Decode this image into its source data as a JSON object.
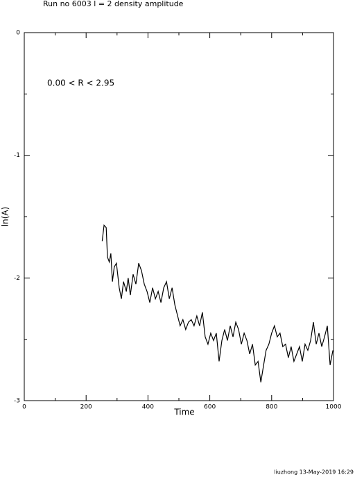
{
  "chart_data": {
    "type": "line",
    "title": "Run no  6003  l =  2  density amplitude",
    "annotation": "0.00 < R <  2.95",
    "xlabel": "Time",
    "ylabel": "ln(A)",
    "footer": "liuzhong 13-May-2019 16:29",
    "xlim": [
      0,
      1000
    ],
    "ylim": [
      -3,
      0
    ],
    "xticks": [
      0,
      200,
      400,
      600,
      800,
      1000
    ],
    "xminor_ticks": [
      100,
      300,
      500,
      700,
      900
    ],
    "yticks": [
      -3,
      -2,
      -1,
      0
    ],
    "yminor_ticks": [
      -2.5,
      -1.5,
      -0.5
    ],
    "x": [
      252,
      258,
      265,
      269,
      275,
      280,
      285,
      291,
      298,
      307,
      314,
      321,
      330,
      336,
      343,
      352,
      361,
      370,
      379,
      388,
      397,
      406,
      415,
      424,
      433,
      442,
      451,
      460,
      469,
      478,
      487,
      496,
      504,
      513,
      522,
      531,
      540,
      549,
      558,
      567,
      576,
      585,
      594,
      603,
      612,
      621,
      630,
      639,
      648,
      657,
      666,
      675,
      684,
      693,
      702,
      711,
      720,
      729,
      738,
      747,
      756,
      765,
      774,
      782,
      791,
      800,
      809,
      818,
      827,
      836,
      845,
      854,
      863,
      872,
      881,
      890,
      899,
      908,
      917,
      926,
      935,
      944,
      953,
      962,
      971,
      980,
      989,
      998
    ],
    "series": [
      {
        "color": "#000000",
        "values": [
          -1.7,
          -1.57,
          -1.59,
          -1.83,
          -1.87,
          -1.8,
          -2.03,
          -1.91,
          -1.88,
          -2.08,
          -2.17,
          -2.03,
          -2.11,
          -2.0,
          -2.14,
          -1.97,
          -2.05,
          -1.88,
          -1.94,
          -2.05,
          -2.11,
          -2.2,
          -2.08,
          -2.17,
          -2.11,
          -2.2,
          -2.08,
          -2.03,
          -2.17,
          -2.08,
          -2.22,
          -2.31,
          -2.39,
          -2.34,
          -2.42,
          -2.36,
          -2.34,
          -2.39,
          -2.31,
          -2.39,
          -2.28,
          -2.48,
          -2.54,
          -2.45,
          -2.51,
          -2.45,
          -2.68,
          -2.51,
          -2.42,
          -2.51,
          -2.39,
          -2.48,
          -2.36,
          -2.42,
          -2.54,
          -2.45,
          -2.51,
          -2.62,
          -2.54,
          -2.71,
          -2.68,
          -2.85,
          -2.71,
          -2.59,
          -2.54,
          -2.45,
          -2.39,
          -2.48,
          -2.45,
          -2.56,
          -2.54,
          -2.65,
          -2.56,
          -2.68,
          -2.62,
          -2.56,
          -2.68,
          -2.54,
          -2.59,
          -2.51,
          -2.36,
          -2.54,
          -2.45,
          -2.56,
          -2.48,
          -2.39,
          -2.71,
          -2.59
        ]
      }
    ]
  }
}
